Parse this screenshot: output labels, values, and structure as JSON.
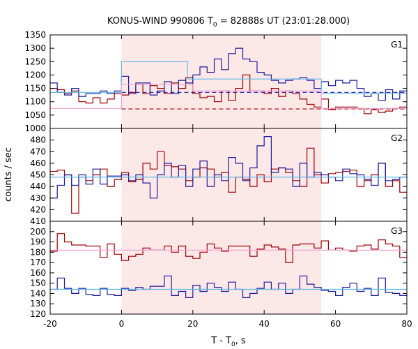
{
  "chart_data": {
    "type": "line",
    "title_main": "KONUS-WIND 990806 T",
    "title_sub": "0",
    "title_rest": " = 82888s UT (23:01:28.000)",
    "xlabel_main": "T - T",
    "xlabel_sub": "0",
    "xlabel_rest": ", s",
    "ylabel": "counts / sec",
    "xlim": [
      -20,
      80
    ],
    "xticks": [
      -20,
      0,
      20,
      40,
      60,
      80
    ],
    "highlight_region": [
      0,
      56
    ],
    "colors": {
      "red": "#a00000",
      "blue": "#1b1b9e",
      "light_blue": "#5ab9e6",
      "pink": "#f0a0d8",
      "highlight": "#fde8e8"
    },
    "panels": [
      {
        "name": "G1",
        "ylim": [
          1000,
          1350
        ],
        "yticks": [
          1000,
          1050,
          1100,
          1150,
          1200,
          1250,
          1300,
          1350
        ],
        "series": [
          {
            "color": "red",
            "x_start": -20,
            "step": 2,
            "values": [
              1150,
              1145,
              1130,
              1140,
              1100,
              1095,
              1115,
              1095,
              1110,
              1130,
              1125,
              1135,
              1165,
              1130,
              1160,
              1150,
              1130,
              1170,
              1150,
              1190,
              1130,
              1115,
              1120,
              1100,
              1140,
              1105,
              1150,
              1200,
              1140,
              1140,
              1130,
              1150,
              1120,
              1140,
              1130,
              1110,
              1090,
              1080,
              1110,
              1070,
              1080,
              1080,
              1080,
              1075,
              1055,
              1070,
              1060,
              1065,
              1075,
              1080
            ]
          },
          {
            "color": "blue",
            "x_start": -20,
            "step": 2,
            "values": [
              1170,
              1135,
              1125,
              1150,
              1120,
              1130,
              1130,
              1140,
              1130,
              1140,
              1195,
              1130,
              1170,
              1170,
              1125,
              1140,
              1175,
              1130,
              1180,
              1170,
              1200,
              1230,
              1210,
              1260,
              1220,
              1280,
              1300,
              1260,
              1250,
              1210,
              1200,
              1180,
              1170,
              1180,
              1185,
              1190,
              1180,
              1150,
              1175,
              1160,
              1180,
              1170,
              1180,
              1150,
              1120,
              1130,
              1105,
              1145,
              1110,
              1140
            ]
          }
        ],
        "fits": [
          {
            "color": "light_blue",
            "points": [
              [
                -20,
                1135
              ],
              [
                0,
                1135
              ],
              [
                0,
                1250
              ],
              [
                18.5,
                1250
              ],
              [
                18.5,
                1185
              ],
              [
                56,
                1185
              ],
              [
                56,
                1130
              ],
              [
                80,
                1130
              ]
            ]
          },
          {
            "color": "pink",
            "points": [
              [
                -20,
                1075
              ],
              [
                0,
                1075
              ],
              [
                0,
                1165
              ],
              [
                20,
                1165
              ],
              [
                20,
                1140
              ],
              [
                56,
                1140
              ],
              [
                56,
                1075
              ],
              [
                80,
                1075
              ]
            ]
          }
        ],
        "backgrounds": [
          {
            "color": "blue",
            "value": 1135,
            "x_range": [
              0,
              80
            ]
          },
          {
            "color": "red",
            "value": 1073,
            "x_range": [
              0,
              80
            ]
          }
        ]
      },
      {
        "name": "G2",
        "ylim": [
          410,
          490
        ],
        "yticks": [
          410,
          420,
          430,
          440,
          450,
          460,
          470,
          480
        ],
        "series": [
          {
            "color": "red",
            "x_start": -20,
            "step": 2,
            "values": [
              453,
              454,
              450,
              417,
              448,
              445,
              450,
              455,
              440,
              446,
              452,
              444,
              446,
              460,
              455,
              470,
              458,
              457,
              455,
              445,
              448,
              456,
              455,
              448,
              452,
              435,
              448,
              446,
              440,
              450,
              444,
              455,
              456,
              452,
              445,
              440,
              473,
              450,
              443,
              451,
              452,
              453,
              454,
              440,
              445,
              450,
              460,
              440,
              445,
              435
            ]
          },
          {
            "color": "blue",
            "x_start": -20,
            "step": 2,
            "values": [
              430,
              441,
              450,
              441,
              450,
              442,
              455,
              442,
              449,
              449,
              450,
              445,
              450,
              443,
              430,
              450,
              460,
              448,
              458,
              440,
              455,
              462,
              440,
              450,
              445,
              465,
              460,
              445,
              456,
              475,
              483,
              452,
              456,
              455,
              440,
              460,
              448,
              452,
              450,
              448,
              445,
              455,
              451,
              450,
              446,
              441,
              460,
              445,
              446,
              448
            ]
          }
        ],
        "fits": [
          {
            "color": "light_blue",
            "points": [
              [
                -20,
                448
              ],
              [
                80,
                448
              ]
            ]
          }
        ],
        "backgrounds": []
      },
      {
        "name": "G3",
        "ylim": [
          120,
          210
        ],
        "yticks": [
          120,
          130,
          140,
          150,
          160,
          170,
          180,
          190,
          200
        ],
        "series": [
          {
            "color": "red",
            "x_start": -20,
            "step": 2,
            "values": [
              181,
              198,
              190,
              187,
              187,
              186,
              186,
              175,
              188,
              178,
              172,
              176,
              178,
              184,
              182,
              182,
              186,
              180,
              186,
              176,
              174,
              180,
              188,
              184,
              181,
              186,
              186,
              186,
              176,
              183,
              187,
              185,
              183,
              170,
              187,
              188,
              188,
              184,
              191,
              182,
              184,
              182,
              181,
              186,
              187,
              183,
              192,
              188,
              186,
              175
            ]
          },
          {
            "color": "blue",
            "x_start": -20,
            "step": 2,
            "values": [
              144,
              155,
              145,
              140,
              145,
              139,
              138,
              145,
              139,
              138,
              145,
              143,
              146,
              144,
              147,
              147,
              157,
              138,
              142,
              136,
              148,
              142,
              150,
              146,
              142,
              151,
              144,
              136,
              140,
              145,
              151,
              144,
              150,
              140,
              144,
              157,
              149,
              146,
              143,
              142,
              138,
              146,
              150,
              142,
              145,
              138,
              155,
              141,
              140,
              138
            ]
          }
        ],
        "fits": [
          {
            "color": "light_blue",
            "points": [
              [
                -20,
                144
              ],
              [
                80,
                144
              ]
            ]
          },
          {
            "color": "pink",
            "points": [
              [
                -20,
                182
              ],
              [
                80,
                182
              ]
            ]
          }
        ],
        "backgrounds": []
      }
    ]
  }
}
